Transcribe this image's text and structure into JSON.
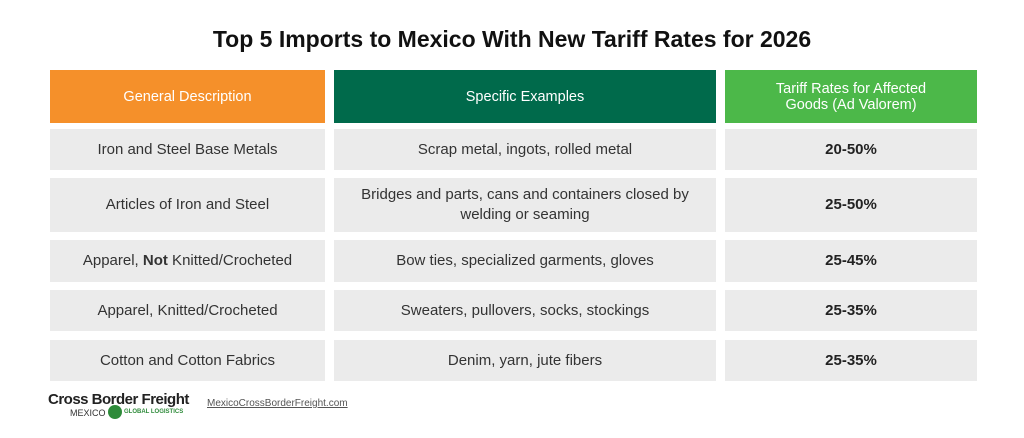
{
  "title": "Top 5 Imports to Mexico With New Tariff Rates for 2026",
  "table": {
    "headers": [
      "General Description",
      "Specific Examples",
      "Tariff Rates for Affected Goods (Ad Valorem)"
    ],
    "rows": [
      [
        "Iron and Steel Base Metals",
        "Scrap metal, ingots, rolled metal",
        "20-50%"
      ],
      [
        "Articles of Iron and Steel",
        "Bridges and parts, cans and containers closed by welding or seaming",
        "25-50%"
      ],
      [
        [
          "Apparel, ",
          "Not",
          " Knitted/Crocheted"
        ],
        "Bow ties, specialized garments, gloves",
        "25-45%"
      ],
      [
        "Apparel, Knitted/Crocheted",
        "Sweaters, pullovers, socks, stockings",
        "25-35%"
      ],
      [
        "Cotton and Cotton Fabrics",
        "Denim, yarn, jute fibers",
        "25-35%"
      ]
    ]
  },
  "footer": {
    "logo": "Cross Border Freight",
    "logo_sub": "MEXICO",
    "logo_tag": "GLOBAL LOGISTICS",
    "url": "MexicoCrossBorderFreight.com"
  }
}
